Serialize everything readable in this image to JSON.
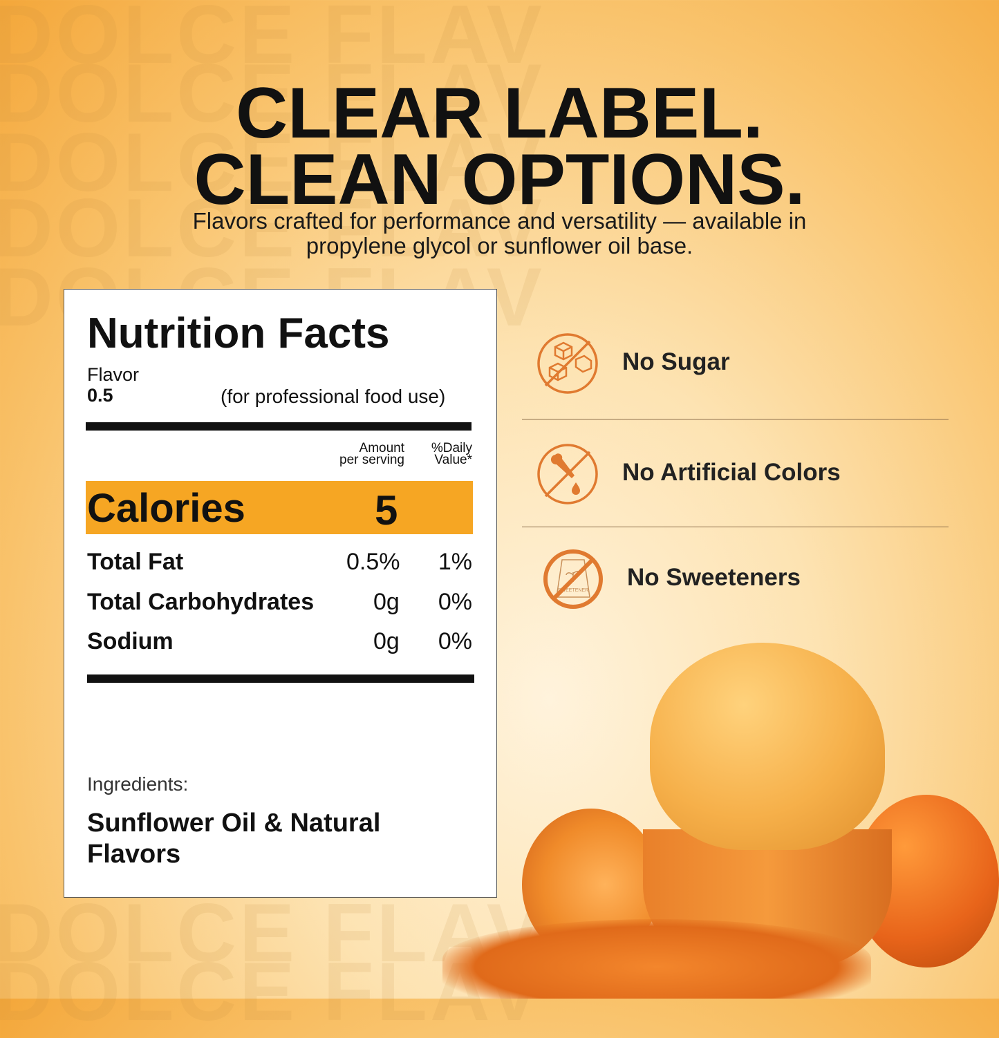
{
  "watermark": "DOLCE FLAV",
  "headline": {
    "line1": "CLEAR LABEL.",
    "line2": "CLEAN OPTIONS."
  },
  "subtitle": {
    "line1": "Flavors crafted for performance and versatility — available in",
    "line2": "propylene glycol or sunflower oil base."
  },
  "nutrition": {
    "title": "Nutrition Facts",
    "product": "Flavor",
    "serving": "0.5",
    "note": "(for professional food use)",
    "col_amount": [
      "Amount",
      "per serving"
    ],
    "col_dv": [
      "%Daily",
      "Value*"
    ],
    "calories_label": "Calories",
    "calories_value": "5",
    "rows": [
      {
        "label": "Total Fat",
        "amount": "0.5%",
        "dv": "1%"
      },
      {
        "label": "Total Carbohydrates",
        "amount": "0g",
        "dv": "0%"
      },
      {
        "label": "Sodium",
        "amount": "0g",
        "dv": "0%"
      }
    ],
    "ingredients_label": "Ingredients:",
    "ingredients": [
      "Sunflower Oil & Natural",
      "Flavors"
    ]
  },
  "features": [
    {
      "label": "No Sugar",
      "icon": "no-sugar-cubes-icon"
    },
    {
      "label": "No Artificial Colors",
      "icon": "no-dropper-icon"
    },
    {
      "label": "No Sweeteners",
      "icon": "no-sweetener-bag-icon"
    }
  ],
  "sweetener_bag_text": "SWEETENER",
  "colors": {
    "accent": "#f6a623",
    "icon": "#e07a30"
  }
}
